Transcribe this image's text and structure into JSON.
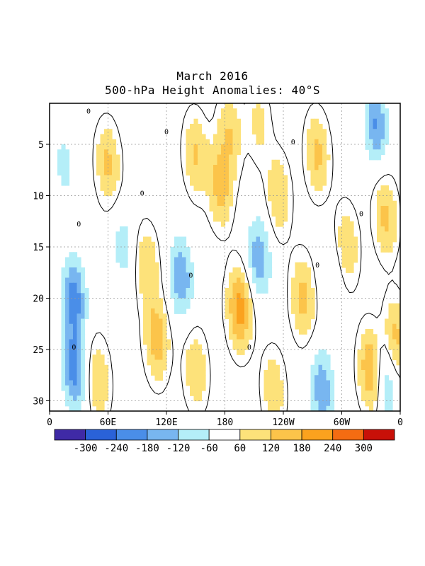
{
  "chart_data": {
    "type": "heatmap",
    "title": "March 2016",
    "subtitle": "500-hPa Height Anomalies: 40°S",
    "x_ticks": [
      "0",
      "60E",
      "120E",
      "180",
      "120W",
      "60W",
      "0"
    ],
    "x_tick_values": [
      0,
      60,
      120,
      180,
      240,
      300,
      360
    ],
    "y_ticks": [
      "5",
      "10",
      "15",
      "20",
      "25",
      "30"
    ],
    "y_tick_values": [
      5,
      10,
      15,
      20,
      25,
      30
    ],
    "xlim": [
      0,
      360
    ],
    "ylim": [
      1,
      31
    ],
    "y_direction": "downward",
    "grid": true,
    "contour_label": "0",
    "colorbar": {
      "labels": [
        "-300",
        "-240",
        "-180",
        "-120",
        "-60",
        "60",
        "120",
        "180",
        "240",
        "300"
      ],
      "colors": [
        "#3f2aa6",
        "#2a62d8",
        "#4a8ee8",
        "#78b6f0",
        "#b4eef8",
        "#ffffff",
        "#fde27a",
        "#fcc44a",
        "#fba21e",
        "#f46c12",
        "#c81008"
      ]
    },
    "anomaly_features": [
      {
        "lon": 60,
        "day": 7,
        "value": 140
      },
      {
        "lon": 150,
        "day": 6,
        "value": 130
      },
      {
        "lon": 175,
        "day": 9,
        "value": 160
      },
      {
        "lon": 185,
        "day": 4,
        "value": 120
      },
      {
        "lon": 215,
        "day": 3,
        "value": 80
      },
      {
        "lon": 235,
        "day": 10,
        "value": 120
      },
      {
        "lon": 275,
        "day": 6,
        "value": 140
      },
      {
        "lon": 305,
        "day": 15,
        "value": 120
      },
      {
        "lon": 345,
        "day": 12,
        "value": 140
      },
      {
        "lon": 100,
        "day": 17,
        "value": 120
      },
      {
        "lon": 195,
        "day": 21,
        "value": 220
      },
      {
        "lon": 110,
        "day": 24,
        "value": 170
      },
      {
        "lon": 260,
        "day": 20,
        "value": 150
      },
      {
        "lon": 330,
        "day": 27,
        "value": 200
      },
      {
        "lon": 355,
        "day": 24,
        "value": 150
      },
      {
        "lon": 50,
        "day": 28,
        "value": 120
      },
      {
        "lon": 150,
        "day": 27,
        "value": 120
      },
      {
        "lon": 230,
        "day": 29,
        "value": 110
      },
      {
        "lon": 25,
        "day": 20,
        "value": -220
      },
      {
        "lon": 25,
        "day": 27,
        "value": -220
      },
      {
        "lon": 135,
        "day": 18,
        "value": -180
      },
      {
        "lon": 215,
        "day": 16,
        "value": -170
      },
      {
        "lon": 335,
        "day": 3,
        "value": -190
      },
      {
        "lon": 280,
        "day": 29,
        "value": -180
      },
      {
        "lon": 345,
        "day": 28,
        "value": -140
      },
      {
        "lon": 15,
        "day": 7,
        "value": -80
      },
      {
        "lon": 75,
        "day": 15,
        "value": -90
      },
      {
        "lon": 290,
        "day": 18,
        "value": -70
      }
    ]
  }
}
